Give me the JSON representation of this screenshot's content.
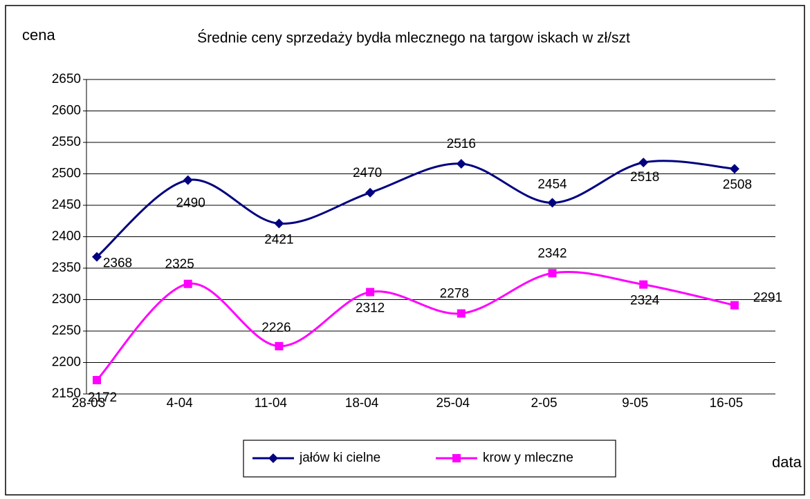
{
  "chart_data": {
    "type": "line",
    "title": "Średnie ceny sprzedaży bydła mlecznego na targow iskach w  zł/szt",
    "y_label": "cena",
    "x_label": "data",
    "categories": [
      "28-03",
      "4-04",
      "11-04",
      "18-04",
      "25-04",
      "2-05",
      "9-05",
      "16-05"
    ],
    "series": [
      {
        "name": "jałów ki cielne",
        "color": "#000080",
        "values": [
          2368,
          2490,
          2421,
          2470,
          2516,
          2454,
          2518,
          2508
        ]
      },
      {
        "name": "krow y mleczne",
        "color": "#ff00ff",
        "values": [
          2172,
          2325,
          2226,
          2312,
          2278,
          2342,
          2324,
          2291
        ]
      }
    ],
    "ylim": [
      2150,
      2650
    ],
    "yticks": [
      2150,
      2200,
      2250,
      2300,
      2350,
      2400,
      2450,
      2500,
      2550,
      2600,
      2650
    ],
    "grid": true
  }
}
